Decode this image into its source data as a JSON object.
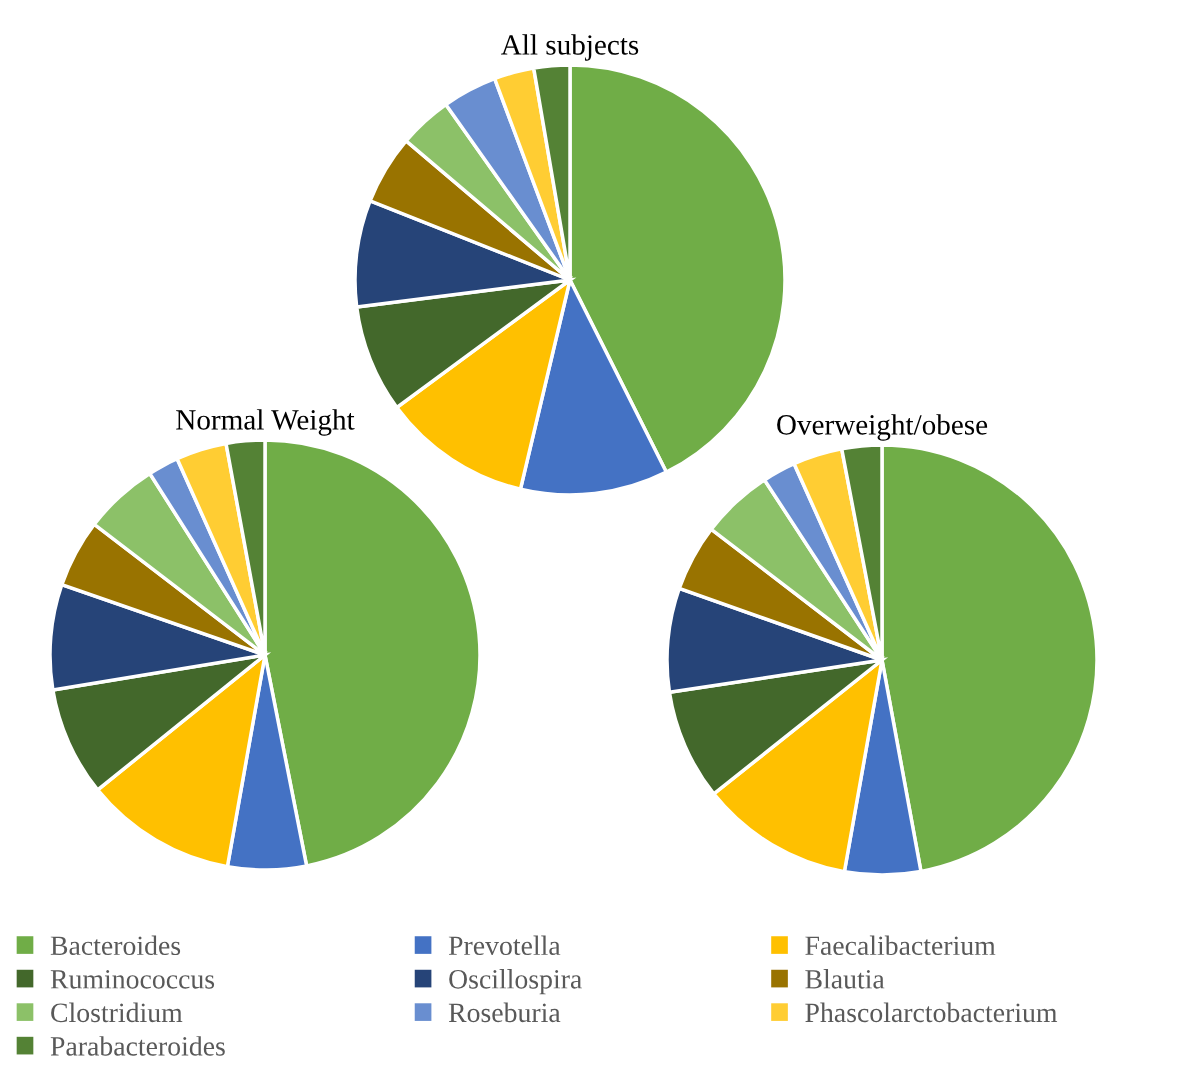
{
  "chart_data": [
    {
      "type": "pie",
      "title": "All subjects",
      "legend": "bottom",
      "categories": [
        "Bacteroides",
        "Prevotella",
        "Faecalibacterium",
        "Ruminococcus",
        "Oscillospira",
        "Blautia",
        "Clostridium",
        "Roseburia",
        "Phascolarctobacterium",
        "Parabacteroides"
      ],
      "values": [
        42.6,
        11.1,
        11.2,
        8.1,
        8.0,
        5.2,
        4.0,
        4.1,
        3.0,
        2.7
      ],
      "colors": [
        "#70ad47",
        "#4472c4",
        "#ffc000",
        "#43682b",
        "#264478",
        "#997300",
        "#8cc168",
        "#698ed0",
        "#ffcd33",
        "#548235"
      ]
    },
    {
      "type": "pie",
      "title": "Normal Weight",
      "values": [
        46.9,
        5.9,
        11.4,
        8.2,
        7.9,
        5.1,
        5.6,
        2.3,
        3.8,
        2.9
      ],
      "colors": [
        "#70ad47",
        "#4472c4",
        "#ffc000",
        "#43682b",
        "#264478",
        "#997300",
        "#8cc168",
        "#698ed0",
        "#ffcd33",
        "#548235"
      ]
    },
    {
      "type": "pie",
      "title": "Overweight/obese",
      "values": [
        47.1,
        5.7,
        11.5,
        8.3,
        7.8,
        5.0,
        5.4,
        2.5,
        3.7,
        3.0
      ],
      "colors": [
        "#70ad47",
        "#4472c4",
        "#ffc000",
        "#43682b",
        "#264478",
        "#997300",
        "#8cc168",
        "#698ed0",
        "#ffcd33",
        "#548235"
      ]
    }
  ]
}
